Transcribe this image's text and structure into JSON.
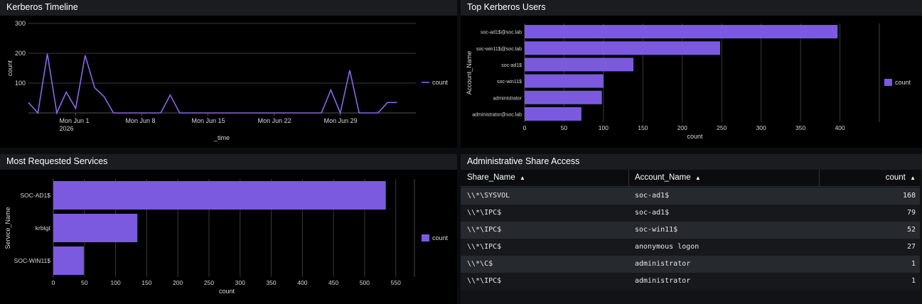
{
  "colors": {
    "bar": "#7b5ae0",
    "line": "#8b66e8",
    "text": "#d8d8d8",
    "grid": "#3a3a3a"
  },
  "panels": {
    "timeline": {
      "title": "Kerberos Timeline",
      "chart_data": {
        "type": "line",
        "ylabel": "count",
        "xlabel": "_time",
        "ylim": [
          0,
          300
        ],
        "yticks": [
          100,
          200,
          300
        ],
        "xtick_labels": [
          {
            "label": "Mon Jun 1",
            "sub": "2026"
          },
          {
            "label": "Mon Jun 8",
            "sub": ""
          },
          {
            "label": "Mon Jun 15",
            "sub": ""
          },
          {
            "label": "Mon Jun 22",
            "sub": ""
          },
          {
            "label": "Mon Jun 29",
            "sub": ""
          }
        ],
        "x_start": "2026-05-27",
        "x_end": "2026-07-07",
        "series": [
          {
            "name": "count",
            "x": [
              "2026-05-27",
              "2026-05-28",
              "2026-05-29",
              "2026-05-30",
              "2026-05-31",
              "2026-06-01",
              "2026-06-02",
              "2026-06-03",
              "2026-06-04",
              "2026-06-05",
              "2026-06-06",
              "2026-06-07",
              "2026-06-08",
              "2026-06-09",
              "2026-06-10",
              "2026-06-11",
              "2026-06-12",
              "2026-06-13",
              "2026-06-14",
              "2026-06-15",
              "2026-06-16",
              "2026-06-17",
              "2026-06-18",
              "2026-06-19",
              "2026-06-20",
              "2026-06-21",
              "2026-06-22",
              "2026-06-23",
              "2026-06-24",
              "2026-06-25",
              "2026-06-26",
              "2026-06-27",
              "2026-06-28",
              "2026-06-29",
              "2026-06-30",
              "2026-07-01",
              "2026-07-02",
              "2026-07-03",
              "2026-07-04",
              "2026-07-05"
            ],
            "values": [
              35,
              0,
              198,
              0,
              70,
              15,
              193,
              85,
              55,
              0,
              0,
              0,
              0,
              0,
              0,
              60,
              0,
              0,
              0,
              0,
              0,
              0,
              0,
              0,
              0,
              0,
              0,
              0,
              0,
              0,
              0,
              0,
              77,
              0,
              143,
              0,
              0,
              0,
              35,
              35
            ]
          }
        ],
        "legend": "right"
      }
    },
    "top_users": {
      "title": "Top Kerberos Users",
      "chart_data": {
        "type": "bar",
        "orientation": "horizontal",
        "ylabel": "Account_Name",
        "xlabel": "count",
        "xlim": [
          0,
          450
        ],
        "xticks": [
          0,
          50,
          100,
          150,
          200,
          250,
          300,
          350,
          400
        ],
        "categories": [
          "soc-ad1$@soc.lab",
          "soc-win11$@soc.lab",
          "soc-ad1$",
          "soc-win11$",
          "administrator",
          "administrator@soc.lab"
        ],
        "series": [
          {
            "name": "count",
            "values": [
              397,
              248,
              138,
              100,
              98,
              72
            ]
          }
        ],
        "legend": "right"
      }
    },
    "services": {
      "title": "Most Requested Services",
      "chart_data": {
        "type": "bar",
        "orientation": "horizontal",
        "ylabel": "Service_Name",
        "xlabel": "count",
        "xlim": [
          0,
          580
        ],
        "xticks": [
          0,
          50,
          100,
          150,
          200,
          250,
          300,
          350,
          400,
          450,
          500,
          550
        ],
        "categories": [
          "SOC-AD1$",
          "krbtgt",
          "SOC-WIN11$"
        ],
        "series": [
          {
            "name": "count",
            "values": [
              534,
              135,
              49
            ]
          }
        ],
        "legend": "right"
      }
    },
    "share_access": {
      "title": "Administrative Share Access",
      "columns": [
        "Share_Name",
        "Account_Name",
        "count"
      ],
      "sort_icon": "sort-icon",
      "rows": [
        [
          "\\\\*\\SYSVOL",
          "soc-ad1$",
          "168"
        ],
        [
          "\\\\*\\IPC$",
          "soc-ad1$",
          "79"
        ],
        [
          "\\\\*\\IPC$",
          "soc-win11$",
          "52"
        ],
        [
          "\\\\*\\IPC$",
          "anonymous logon",
          "27"
        ],
        [
          "\\\\*\\C$",
          "administrator",
          "1"
        ],
        [
          "\\\\*\\IPC$",
          "administrator",
          "1"
        ]
      ]
    }
  }
}
